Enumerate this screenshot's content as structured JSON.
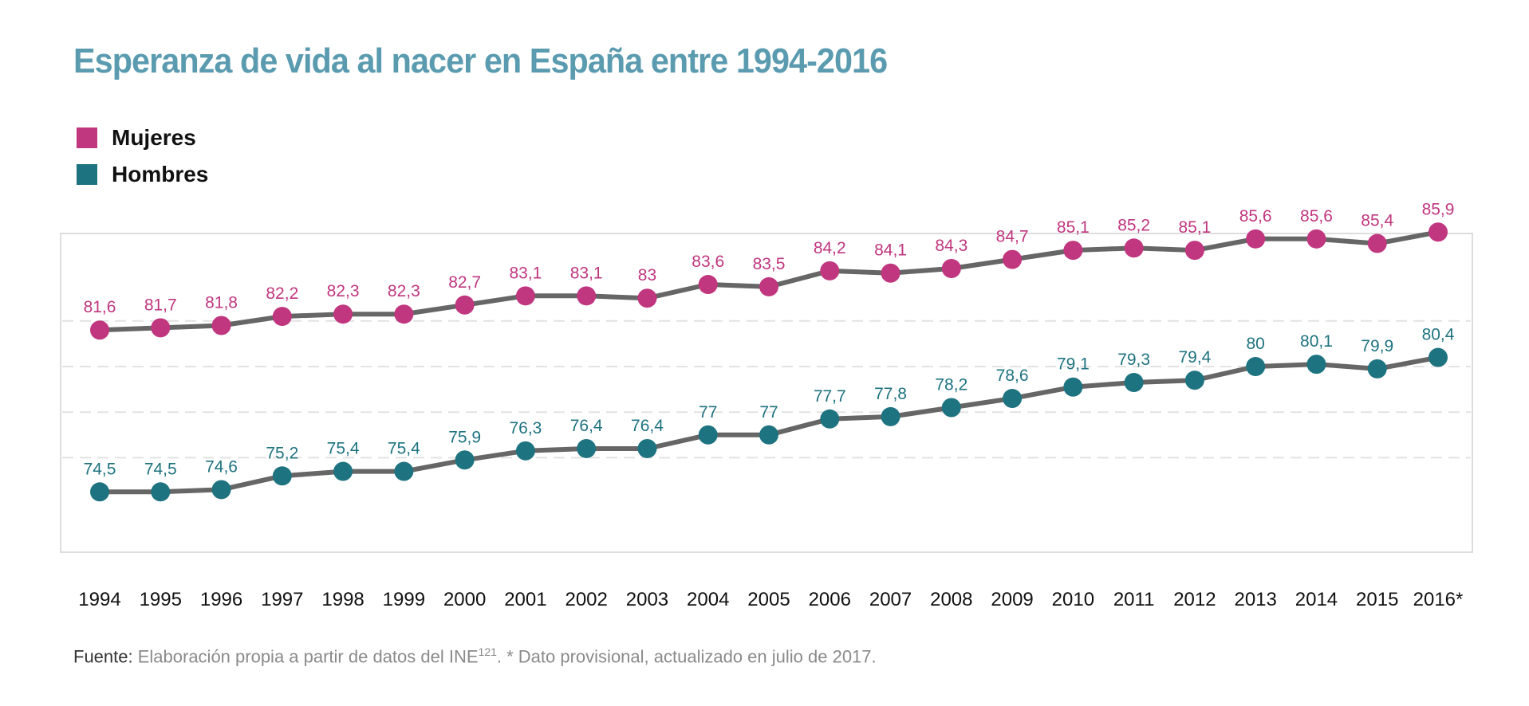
{
  "title": "Esperanza de vida al nacer en España entre 1994-2016",
  "legend": [
    {
      "label": "Mujeres",
      "color": "#c0367f"
    },
    {
      "label": "Hombres",
      "color": "#1e7380"
    }
  ],
  "source": {
    "lead": "Fuente:",
    "text": " Elaboración propia a partir de datos del INE",
    "ref": "121",
    "note": ". * Dato provisional, actualizado en julio de 2017."
  },
  "chart_data": {
    "type": "line",
    "title": "Esperanza de vida al nacer en España entre 1994-2016",
    "x": [
      "1994",
      "1995",
      "1996",
      "1997",
      "1998",
      "1999",
      "2000",
      "2001",
      "2002",
      "2003",
      "2004",
      "2005",
      "2006",
      "2007",
      "2008",
      "2009",
      "2010",
      "2011",
      "2012",
      "2013",
      "2014",
      "2015",
      "2016*"
    ],
    "series": [
      {
        "name": "Mujeres",
        "color": "#c0367f",
        "values": [
          81.6,
          81.7,
          81.8,
          82.2,
          82.3,
          82.3,
          82.7,
          83.1,
          83.1,
          83.0,
          83.6,
          83.5,
          84.2,
          84.1,
          84.3,
          84.7,
          85.1,
          85.2,
          85.1,
          85.6,
          85.6,
          85.4,
          85.9
        ],
        "labels": [
          "81,6",
          "81,7",
          "81,8",
          "82,2",
          "82,3",
          "82,3",
          "82,7",
          "83,1",
          "83,1",
          "83",
          "83,6",
          "83,5",
          "84,2",
          "84,1",
          "84,3",
          "84,7",
          "85,1",
          "85,2",
          "85,1",
          "85,6",
          "85,6",
          "85,4",
          "85,9"
        ]
      },
      {
        "name": "Hombres",
        "color": "#1e7380",
        "values": [
          74.5,
          74.5,
          74.6,
          75.2,
          75.4,
          75.4,
          75.9,
          76.3,
          76.4,
          76.4,
          77.0,
          77.0,
          77.7,
          77.8,
          78.2,
          78.6,
          79.1,
          79.3,
          79.4,
          80.0,
          80.1,
          79.9,
          80.4
        ],
        "labels": [
          "74,5",
          "74,5",
          "74,6",
          "75,2",
          "75,4",
          "75,4",
          "75,9",
          "76,3",
          "76,4",
          "76,4",
          "77",
          "77",
          "77,7",
          "77,8",
          "78,2",
          "78,6",
          "79,1",
          "79,3",
          "79,4",
          "80",
          "80,1",
          "79,9",
          "80,4"
        ]
      }
    ],
    "line_color": "#666666",
    "grid": true,
    "legend_position": "top-left"
  }
}
